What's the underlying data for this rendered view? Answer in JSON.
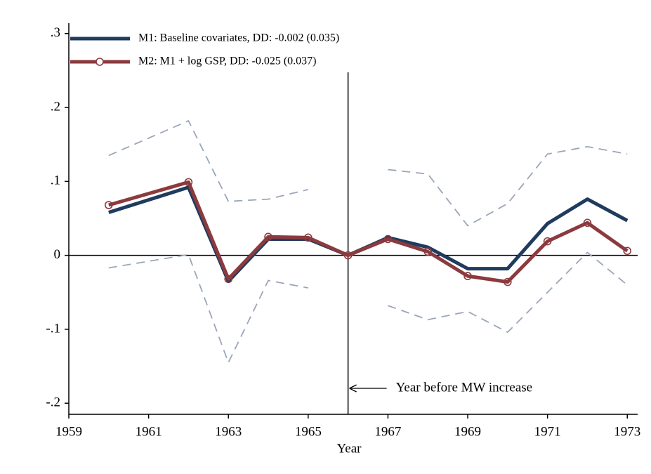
{
  "chart_data": {
    "type": "line",
    "x_label": "Year",
    "x": [
      1960,
      1962,
      1963,
      1964,
      1965,
      1966,
      1967,
      1968,
      1969,
      1970,
      1971,
      1972,
      1973
    ],
    "series": [
      {
        "color": "#9aa6ba",
        "style": "dashed",
        "values": [
          0.135,
          0.182,
          0.073,
          0.076,
          0.089,
          null,
          0.116,
          0.11,
          0.04,
          0.07,
          0.137,
          0.147,
          0.137
        ]
      },
      {
        "color": "#9aa6ba",
        "style": "dashed",
        "values": [
          -0.017,
          0.001,
          -0.145,
          -0.034,
          -0.044,
          null,
          -0.068,
          -0.087,
          -0.076,
          -0.104,
          -0.05,
          0.004,
          -0.04
        ]
      },
      {
        "name": "M1: Baseline covariates, DD: -0.002 (0.035)",
        "color": "#1f3b5e",
        "style": "solid",
        "values": [
          0.058,
          0.092,
          -0.035,
          0.022,
          0.022,
          0,
          0.024,
          0.011,
          -0.018,
          -0.018,
          0.043,
          0.076,
          0.047
        ]
      },
      {
        "name": "M2: M1 + log GSP, DD: -0.025 (0.037)",
        "color": "#8b3a3e",
        "style": "solid",
        "marker": "circle",
        "values": [
          0.068,
          0.099,
          -0.032,
          0.025,
          0.024,
          0,
          0.022,
          0.005,
          -0.028,
          -0.036,
          0.019,
          0.044,
          0.006
        ]
      }
    ],
    "xlim": [
      1959,
      1973.26
    ],
    "xticks": [
      1959,
      1961,
      1963,
      1965,
      1967,
      1969,
      1971,
      1973
    ],
    "ylim": [
      -0.215,
      0.314
    ],
    "yticks": [
      {
        "value": 0.3,
        "label": ".3"
      },
      {
        "value": 0.2,
        "label": ".2"
      },
      {
        "value": 0.1,
        "label": ".1"
      },
      0,
      {
        "value": -0.1,
        "label": "-.1"
      },
      {
        "value": -0.2,
        "label": "-.2"
      }
    ],
    "hline": 0,
    "vline": 1966,
    "annotation": "Year before MW increase",
    "legend": "top-left"
  }
}
